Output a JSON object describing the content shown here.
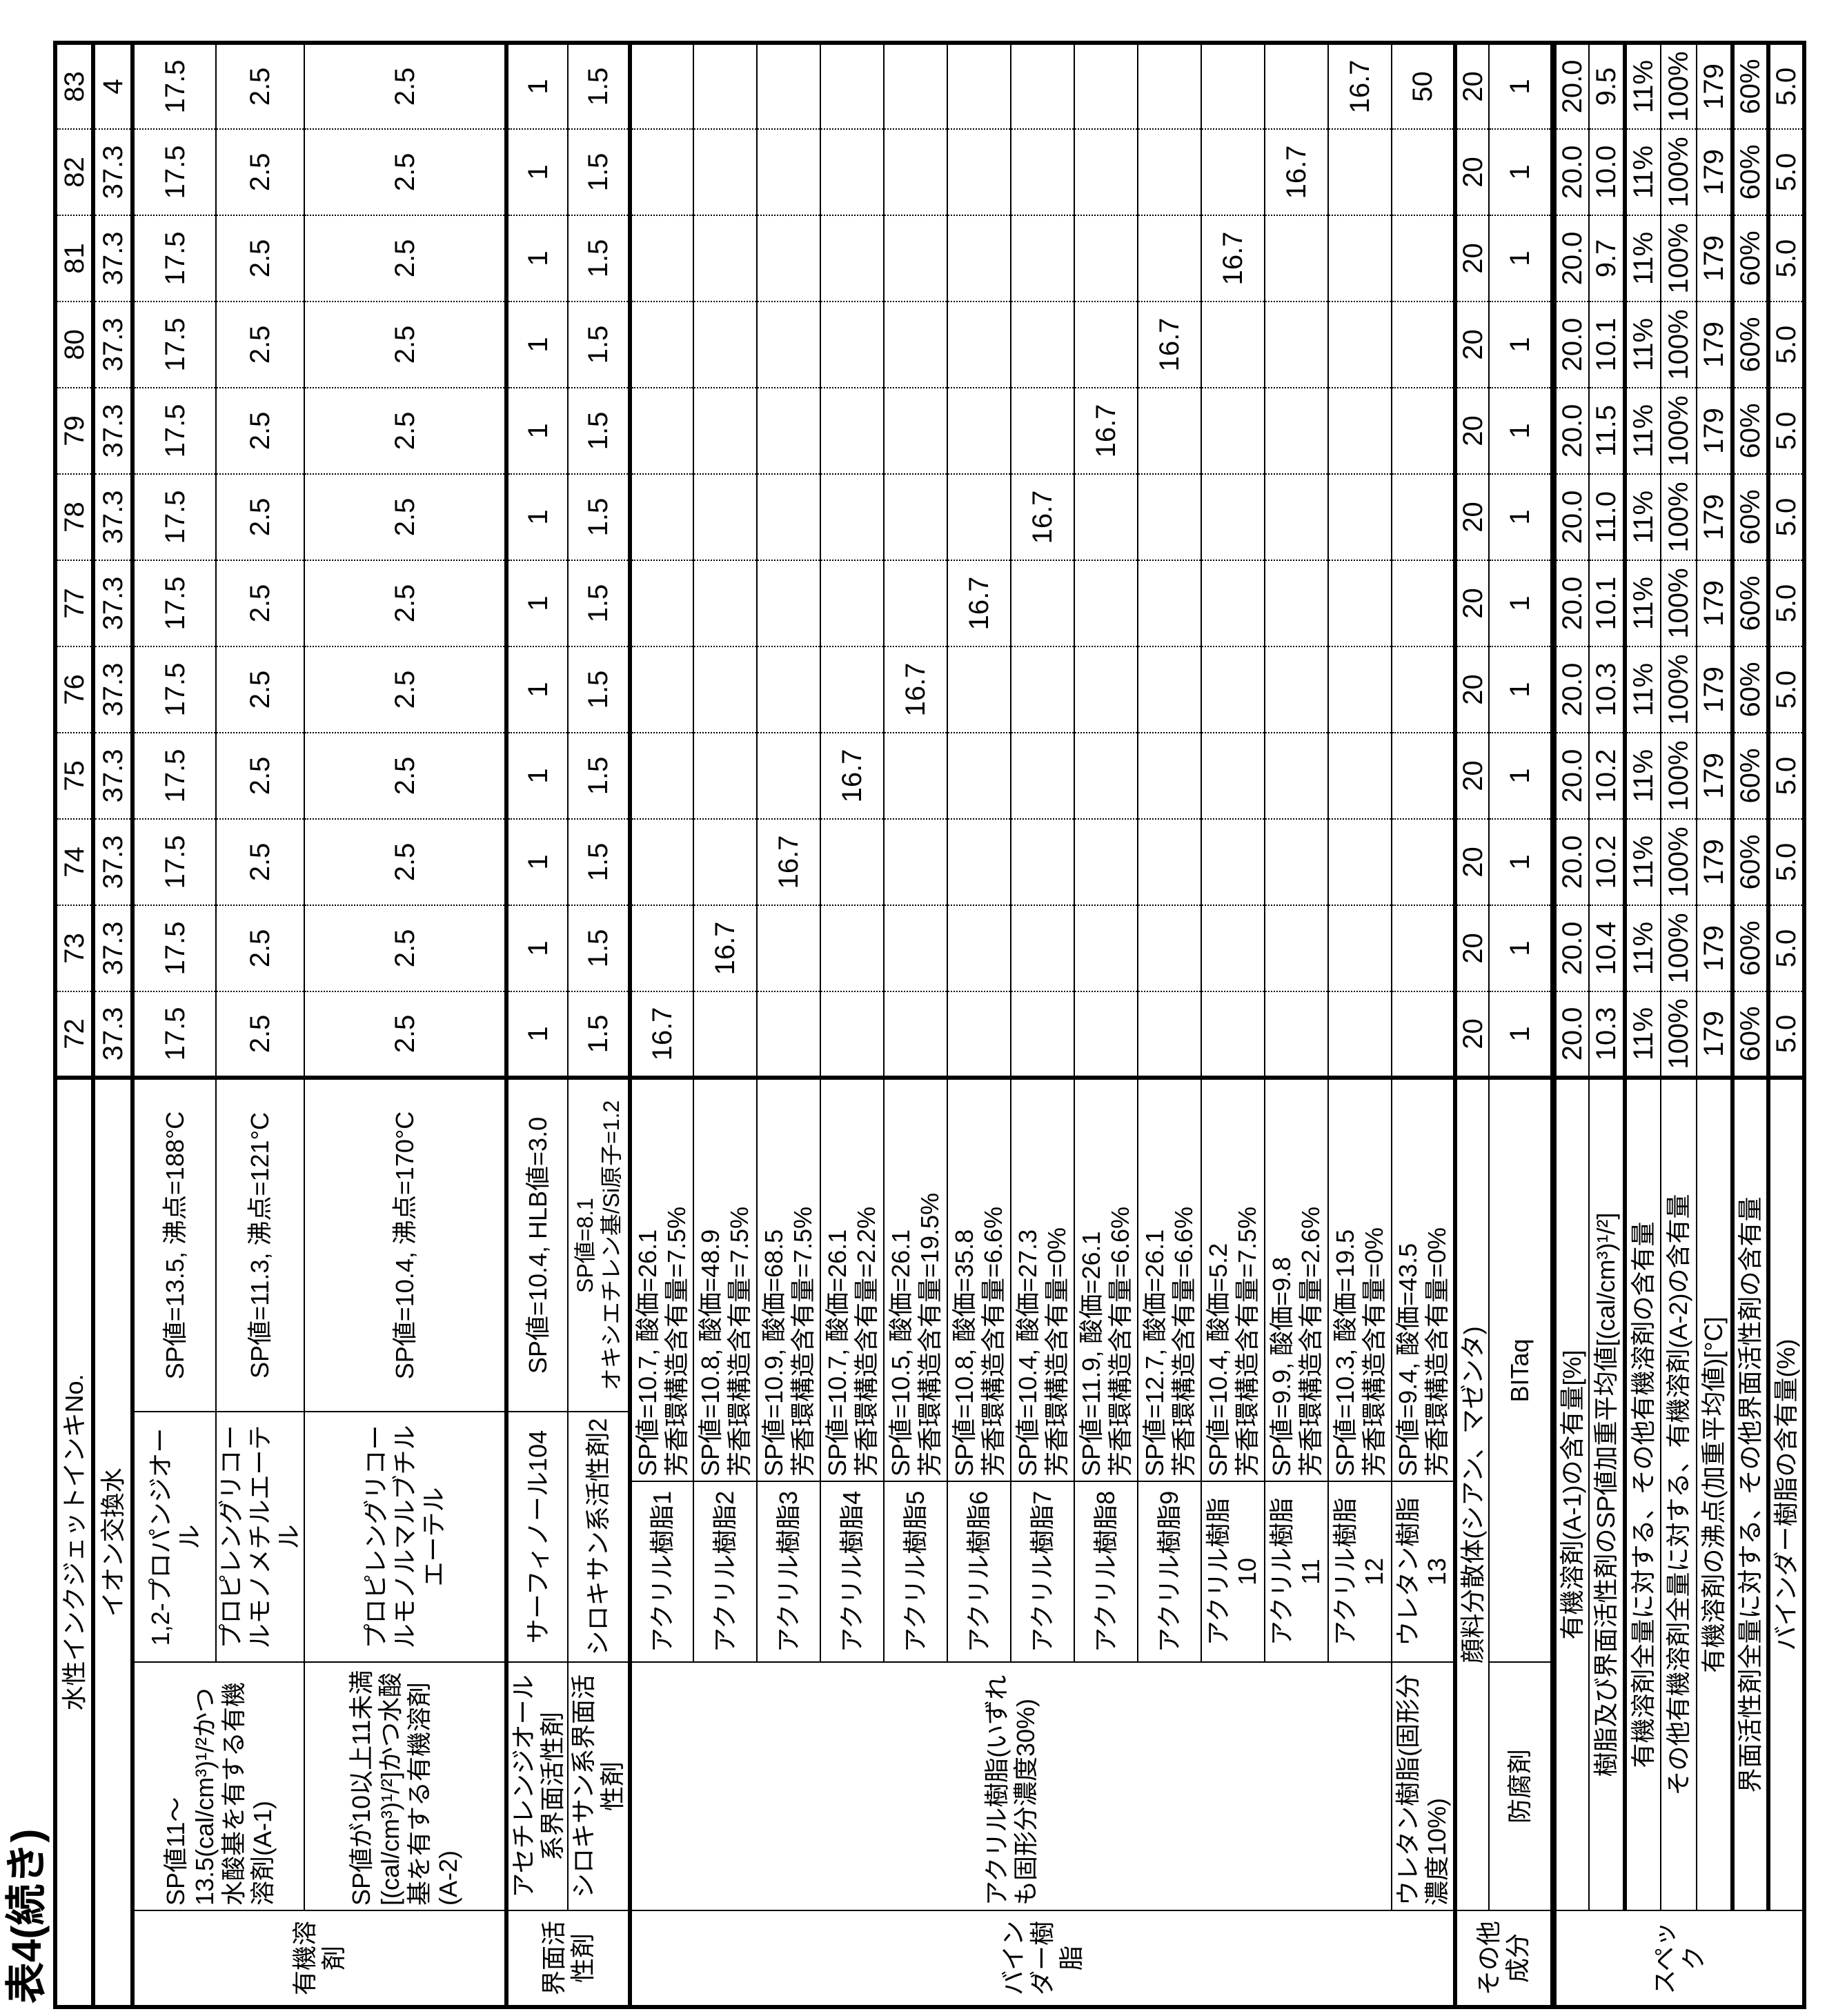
{
  "caption": "表4(続き)",
  "header": {
    "label": "水性インクジェットインキNo.",
    "inks": [
      "72",
      "73",
      "74",
      "75",
      "76",
      "77",
      "78",
      "79",
      "80",
      "81",
      "82",
      "83"
    ]
  },
  "water": {
    "label": "イオン交換水",
    "values": [
      "37.3",
      "37.3",
      "37.3",
      "37.3",
      "37.3",
      "37.3",
      "37.3",
      "37.3",
      "37.3",
      "37.3",
      "37.3",
      "4"
    ]
  },
  "organic_solvent": {
    "category": "有機溶剤",
    "groups": [
      {
        "label": "SP値11～13.5(cal/cm³)¹/²かつ水酸基を有する有機溶剤(A-1)",
        "items": [
          {
            "name": "1,2-プロパンジオール",
            "property": "SP値=13.5, 沸点=188°C",
            "values": [
              "17.5",
              "17.5",
              "17.5",
              "17.5",
              "17.5",
              "17.5",
              "17.5",
              "17.5",
              "17.5",
              "17.5",
              "17.5",
              "17.5"
            ]
          },
          {
            "name": "プロピレングリコールモノメチルエーテル",
            "property": "SP値=11.3, 沸点=121°C",
            "values": [
              "2.5",
              "2.5",
              "2.5",
              "2.5",
              "2.5",
              "2.5",
              "2.5",
              "2.5",
              "2.5",
              "2.5",
              "2.5",
              "2.5"
            ]
          }
        ]
      },
      {
        "label": "SP値が10以上11未満[(cal/cm³)¹/²]かつ水酸基を有する有機溶剤(A-2)",
        "items": [
          {
            "name": "プロピレングリコールモノルマルブチルエーテル",
            "property": "SP値=10.4, 沸点=170°C",
            "values": [
              "2.5",
              "2.5",
              "2.5",
              "2.5",
              "2.5",
              "2.5",
              "2.5",
              "2.5",
              "2.5",
              "2.5",
              "2.5",
              "2.5"
            ]
          }
        ]
      }
    ]
  },
  "surfactant": {
    "category": "界面活性剤",
    "items": [
      {
        "group": "アセチレンジオール系界面活性剤",
        "name": "サーフィノール104",
        "property": [
          "SP値=10.4, HLB値=3.0"
        ],
        "values": [
          "1",
          "1",
          "1",
          "1",
          "1",
          "1",
          "1",
          "1",
          "1",
          "1",
          "1",
          "1"
        ]
      },
      {
        "group": "シロキサン系界面活性剤",
        "name": "シロキサン系活性剤2",
        "property": [
          "SP値=8.1",
          "オキシエチレン基/Si原子=1.2"
        ],
        "values": [
          "1.5",
          "1.5",
          "1.5",
          "1.5",
          "1.5",
          "1.5",
          "1.5",
          "1.5",
          "1.5",
          "1.5",
          "1.5",
          "1.5"
        ]
      }
    ]
  },
  "binder": {
    "category": "バインダー樹脂",
    "acrylic_group": "アクリル樹脂(いずれも固形分濃度30%)",
    "urethane_group": "ウレタン樹脂(固形分濃度10%)",
    "items": [
      {
        "name": "アクリル樹脂1",
        "property": [
          "SP値=10.7, 酸価=26.1",
          "芳香環構造含有量=7.5%"
        ],
        "values": [
          "16.7",
          "",
          "",
          "",
          "",
          "",
          "",
          "",
          "",
          "",
          "",
          ""
        ]
      },
      {
        "name": "アクリル樹脂2",
        "property": [
          "SP値=10.8, 酸価=48.9",
          "芳香環構造含有量=7.5%"
        ],
        "values": [
          "",
          "16.7",
          "",
          "",
          "",
          "",
          "",
          "",
          "",
          "",
          "",
          ""
        ]
      },
      {
        "name": "アクリル樹脂3",
        "property": [
          "SP値=10.9, 酸価=68.5",
          "芳香環構造含有量=7.5%"
        ],
        "values": [
          "",
          "",
          "16.7",
          "",
          "",
          "",
          "",
          "",
          "",
          "",
          "",
          ""
        ]
      },
      {
        "name": "アクリル樹脂4",
        "property": [
          "SP値=10.7, 酸価=26.1",
          "芳香環構造含有量=2.2%"
        ],
        "values": [
          "",
          "",
          "",
          "16.7",
          "",
          "",
          "",
          "",
          "",
          "",
          "",
          ""
        ]
      },
      {
        "name": "アクリル樹脂5",
        "property": [
          "SP値=10.5, 酸価=26.1",
          "芳香環構造含有量=19.5%"
        ],
        "values": [
          "",
          "",
          "",
          "",
          "16.7",
          "",
          "",
          "",
          "",
          "",
          "",
          ""
        ]
      },
      {
        "name": "アクリル樹脂6",
        "property": [
          "SP値=10.8, 酸価=35.8",
          "芳香環構造含有量=6.6%"
        ],
        "values": [
          "",
          "",
          "",
          "",
          "",
          "16.7",
          "",
          "",
          "",
          "",
          "",
          ""
        ]
      },
      {
        "name": "アクリル樹脂7",
        "property": [
          "SP値=10.4, 酸価=27.3",
          "芳香環構造含有量=0%"
        ],
        "values": [
          "",
          "",
          "",
          "",
          "",
          "",
          "16.7",
          "",
          "",
          "",
          "",
          ""
        ]
      },
      {
        "name": "アクリル樹脂8",
        "property": [
          "SP値=11.9, 酸価=26.1",
          "芳香環構造含有量=6.6%"
        ],
        "values": [
          "",
          "",
          "",
          "",
          "",
          "",
          "",
          "16.7",
          "",
          "",
          "",
          ""
        ]
      },
      {
        "name": "アクリル樹脂9",
        "property": [
          "SP値=12.7, 酸価=26.1",
          "芳香環構造含有量=6.6%"
        ],
        "values": [
          "",
          "",
          "",
          "",
          "",
          "",
          "",
          "",
          "16.7",
          "",
          "",
          ""
        ]
      },
      {
        "name": "アクリル樹脂10",
        "property": [
          "SP値=10.4, 酸価=5.2",
          "芳香環構造含有量=7.5%"
        ],
        "values": [
          "",
          "",
          "",
          "",
          "",
          "",
          "",
          "",
          "",
          "16.7",
          "",
          ""
        ]
      },
      {
        "name": "アクリル樹脂11",
        "property": [
          "SP値=9.9, 酸価=9.8",
          "芳香環構造含有量=2.6%"
        ],
        "values": [
          "",
          "",
          "",
          "",
          "",
          "",
          "",
          "",
          "",
          "",
          "16.7",
          ""
        ]
      },
      {
        "name": "アクリル樹脂12",
        "property": [
          "SP値=10.3, 酸価=19.5",
          "芳香環構造含有量=0%"
        ],
        "values": [
          "",
          "",
          "",
          "",
          "",
          "",
          "",
          "",
          "",
          "",
          "",
          "16.7"
        ]
      },
      {
        "name": "ウレタン樹脂13",
        "property": [
          "SP値=9.4, 酸価=43.5",
          "芳香環構造含有量=0%"
        ],
        "values": [
          "",
          "",
          "",
          "",
          "",
          "",
          "",
          "",
          "",
          "",
          "",
          "50"
        ]
      }
    ]
  },
  "other": {
    "category": "その他成分",
    "pigment": {
      "label": "顔料分散体(シアン、マゼンタ)",
      "values": [
        "20",
        "20",
        "20",
        "20",
        "20",
        "20",
        "20",
        "20",
        "20",
        "20",
        "20",
        "20"
      ]
    },
    "preservative": {
      "label": "防腐剤",
      "name": "BITaq",
      "values": [
        "1",
        "1",
        "1",
        "1",
        "1",
        "1",
        "1",
        "1",
        "1",
        "1",
        "1",
        "1"
      ]
    }
  },
  "spec": {
    "category": "スペック",
    "rows": [
      {
        "label": "有機溶剤(A-1)の含有量[%]",
        "values": [
          "20.0",
          "20.0",
          "20.0",
          "20.0",
          "20.0",
          "20.0",
          "20.0",
          "20.0",
          "20.0",
          "20.0",
          "20.0",
          "20.0"
        ]
      },
      {
        "label": "樹脂及び界面活性剤のSP値加重平均値[(cal/cm³)¹/²]",
        "values": [
          "10.3",
          "10.4",
          "10.2",
          "10.2",
          "10.3",
          "10.1",
          "11.0",
          "11.5",
          "10.1",
          "9.7",
          "10.0",
          "9.5"
        ]
      },
      {
        "label": "有機溶剤全量に対する、その他有機溶剤の含有量",
        "values": [
          "11%",
          "11%",
          "11%",
          "11%",
          "11%",
          "11%",
          "11%",
          "11%",
          "11%",
          "11%",
          "11%",
          "11%"
        ]
      },
      {
        "label": "その他有機溶剤全量に対する、有機溶剤(A-2)の含有量",
        "values": [
          "100%",
          "100%",
          "100%",
          "100%",
          "100%",
          "100%",
          "100%",
          "100%",
          "100%",
          "100%",
          "100%",
          "100%"
        ]
      },
      {
        "label": "有機溶剤の沸点(加重平均値)[°C]",
        "values": [
          "179",
          "179",
          "179",
          "179",
          "179",
          "179",
          "179",
          "179",
          "179",
          "179",
          "179",
          "179"
        ]
      },
      {
        "label": "界面活性剤全量に対する、その他界面活性剤の含有量",
        "values": [
          "60%",
          "60%",
          "60%",
          "60%",
          "60%",
          "60%",
          "60%",
          "60%",
          "60%",
          "60%",
          "60%",
          "60%"
        ]
      },
      {
        "label": "バインダー樹脂の含有量(%)",
        "values": [
          "5.0",
          "5.0",
          "5.0",
          "5.0",
          "5.0",
          "5.0",
          "5.0",
          "5.0",
          "5.0",
          "5.0",
          "5.0",
          "5.0"
        ]
      }
    ]
  }
}
